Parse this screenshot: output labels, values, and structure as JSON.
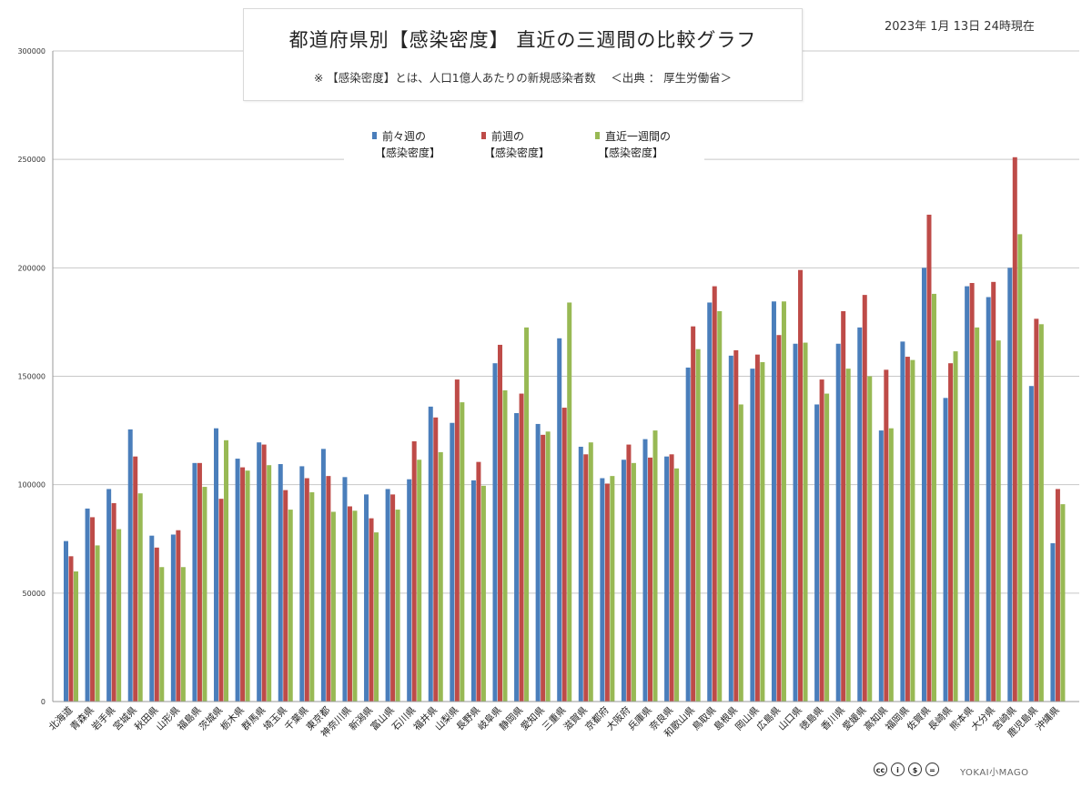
{
  "date": "2023年 1月 13日 24時現在",
  "title": "都道府県別【感染密度】 直近の三週間の比較グラフ",
  "subtitle": "※ 【感染密度】とは、人口1億人あたりの新規感染者数　 ＜出典 ： 厚生労働省＞",
  "credit": {
    "icons": [
      "creative-commons-icon",
      "attribution-icon",
      "noncommercial-icon",
      "noderivatives-icon"
    ],
    "text": "YOKAI小MAGO"
  },
  "chart_data": {
    "type": "bar",
    "title": "都道府県別【感染密度】 直近の三週間の比較グラフ",
    "xlabel": "",
    "ylabel": "",
    "ylim": [
      0,
      300000
    ],
    "yticks": [
      "0",
      "50000",
      "100000",
      "150000",
      "200000",
      "250000",
      "300000"
    ],
    "grid": true,
    "legend_position": "top-center",
    "categories": [
      "北海道",
      "青森県",
      "岩手県",
      "宮城県",
      "秋田県",
      "山形県",
      "福島県",
      "茨城県",
      "栃木県",
      "群馬県",
      "埼玉県",
      "千葉県",
      "東京都",
      "神奈川県",
      "新潟県",
      "富山県",
      "石川県",
      "福井県",
      "山梨県",
      "長野県",
      "岐阜県",
      "静岡県",
      "愛知県",
      "三重県",
      "滋賀県",
      "京都府",
      "大阪府",
      "兵庫県",
      "奈良県",
      "和歌山県",
      "鳥取県",
      "島根県",
      "岡山県",
      "広島県",
      "山口県",
      "徳島県",
      "香川県",
      "愛媛県",
      "高知県",
      "福岡県",
      "佐賀県",
      "長崎県",
      "熊本県",
      "大分県",
      "宮崎県",
      "鹿児島県",
      "沖縄県"
    ],
    "series": [
      {
        "name": "前々週の【感染密度】",
        "color": "#4a7ebb",
        "values": [
          74000,
          89000,
          98000,
          125500,
          76500,
          77000,
          110000,
          126000,
          112000,
          119500,
          109500,
          108500,
          116500,
          103500,
          95500,
          98000,
          102500,
          136000,
          128500,
          102000,
          156000,
          133000,
          128000,
          167500,
          117500,
          103000,
          111500,
          121000,
          113000,
          154000,
          184000,
          159500,
          153500,
          184500,
          165000,
          137000,
          165000,
          172500,
          125000,
          166000,
          200000,
          140000,
          191500,
          186500,
          200000,
          145500,
          73000
        ]
      },
      {
        "name": "前週の【感染密度】",
        "color": "#be4b48",
        "values": [
          67000,
          85000,
          91500,
          113000,
          71000,
          79000,
          110000,
          93500,
          108000,
          118500,
          97500,
          103000,
          104000,
          90000,
          84500,
          95500,
          120000,
          131000,
          148500,
          110500,
          164500,
          142000,
          123000,
          135500,
          114000,
          100500,
          118500,
          112500,
          114000,
          173000,
          191500,
          162000,
          160000,
          169000,
          199000,
          148500,
          180000,
          187500,
          153000,
          159000,
          224500,
          156000,
          193000,
          193500,
          251000,
          176500,
          98000
        ]
      },
      {
        "name": "直近一週間の【感染密度】",
        "color": "#98b954",
        "values": [
          60000,
          72000,
          79500,
          96000,
          62000,
          62000,
          99000,
          120500,
          106500,
          109000,
          88500,
          96500,
          87500,
          88000,
          78000,
          88500,
          111500,
          115000,
          138000,
          99500,
          143500,
          172500,
          124500,
          184000,
          119500,
          104000,
          110000,
          125000,
          107500,
          162500,
          180000,
          137000,
          156500,
          184500,
          165500,
          142000,
          153500,
          150000,
          126000,
          157500,
          188000,
          161500,
          172500,
          166500,
          215500,
          174000,
          91000
        ]
      }
    ]
  }
}
